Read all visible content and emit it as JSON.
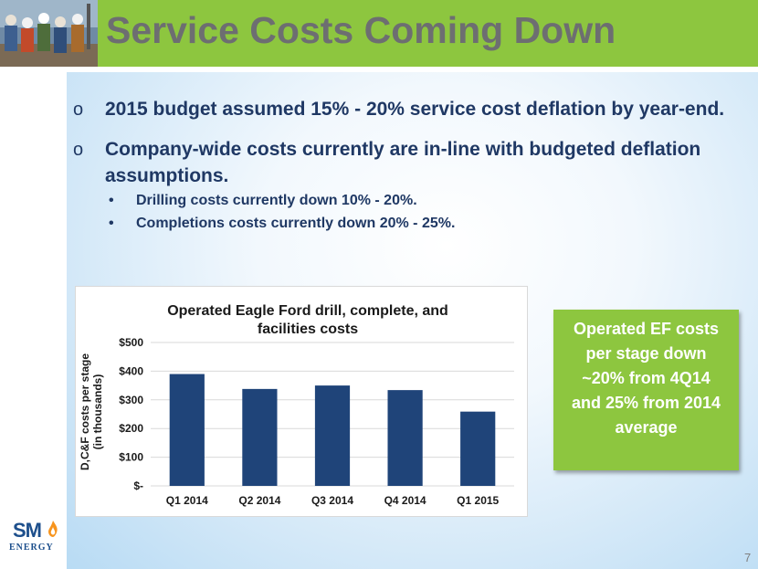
{
  "slide": {
    "title": "Service Costs Coming Down",
    "page_number": "7",
    "logo": {
      "brand": "SM",
      "tagline": "ENERGY"
    },
    "bullets": [
      {
        "text": "2015 budget assumed 15% - 20% service cost deflation by year-end."
      },
      {
        "text": "Company-wide costs currently are in-line with budgeted deflation assumptions.",
        "line1": "Company-wide costs currently are in-line with budgeted deflation",
        "line2": "assumptions."
      }
    ],
    "sub_bullets": [
      {
        "text": "Drilling costs currently down 10% - 20%."
      },
      {
        "text": "Completions costs currently down 20% - 25%."
      }
    ],
    "callout": {
      "lines": [
        "Operated EF costs",
        "per stage down",
        "~20% from 4Q14",
        "and 25% from 2014",
        "average"
      ]
    },
    "colors": {
      "header_green": "#8dc63f",
      "title_gray": "#6d6e71",
      "bar": "#1f4479",
      "text_navy": "#1f3864"
    }
  },
  "chart_data": {
    "type": "bar",
    "title": "Operated Eagle Ford drill, complete, and facilities costs",
    "title_line1": "Operated Eagle Ford drill, complete, and",
    "title_line2": "facilities costs",
    "ylabel": "D,C&F costs per stage (in thousands)",
    "ylabel_line1": "D,C&F costs per stage",
    "ylabel_line2": "(in thousands)",
    "xlabel": "",
    "categories": [
      "Q1 2014",
      "Q2 2014",
      "Q3 2014",
      "Q4 2014",
      "Q1 2015"
    ],
    "values": [
      390,
      338,
      350,
      334,
      259
    ],
    "ylim": [
      0,
      500
    ],
    "yticks": [
      0,
      100,
      200,
      300,
      400,
      500
    ],
    "ytick_labels": [
      "$-",
      "$100",
      "$200",
      "$300",
      "$400",
      "$500"
    ],
    "grid": true
  }
}
